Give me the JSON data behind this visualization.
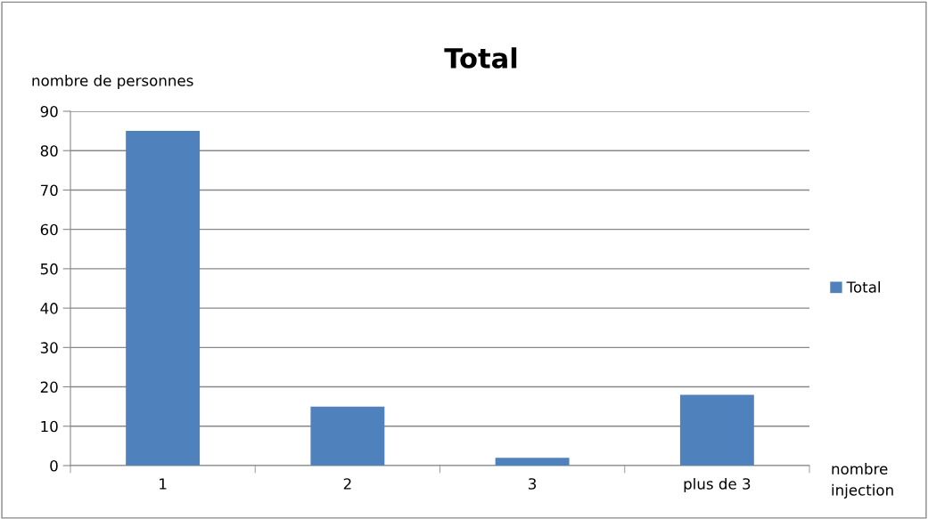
{
  "chart_data": {
    "type": "bar",
    "title": "Total",
    "ylabel": "nombre de personnes",
    "xlabel": "nombre injection",
    "categories": [
      "1",
      "2",
      "3",
      "plus de 3"
    ],
    "series": [
      {
        "name": "Total",
        "color": "#4f81bd",
        "values": [
          85,
          15,
          2,
          18
        ]
      }
    ],
    "ylim": [
      0,
      90
    ],
    "yticks": [
      0,
      10,
      20,
      30,
      40,
      50,
      60,
      70,
      80,
      90
    ],
    "grid": "y",
    "legend": "right"
  }
}
